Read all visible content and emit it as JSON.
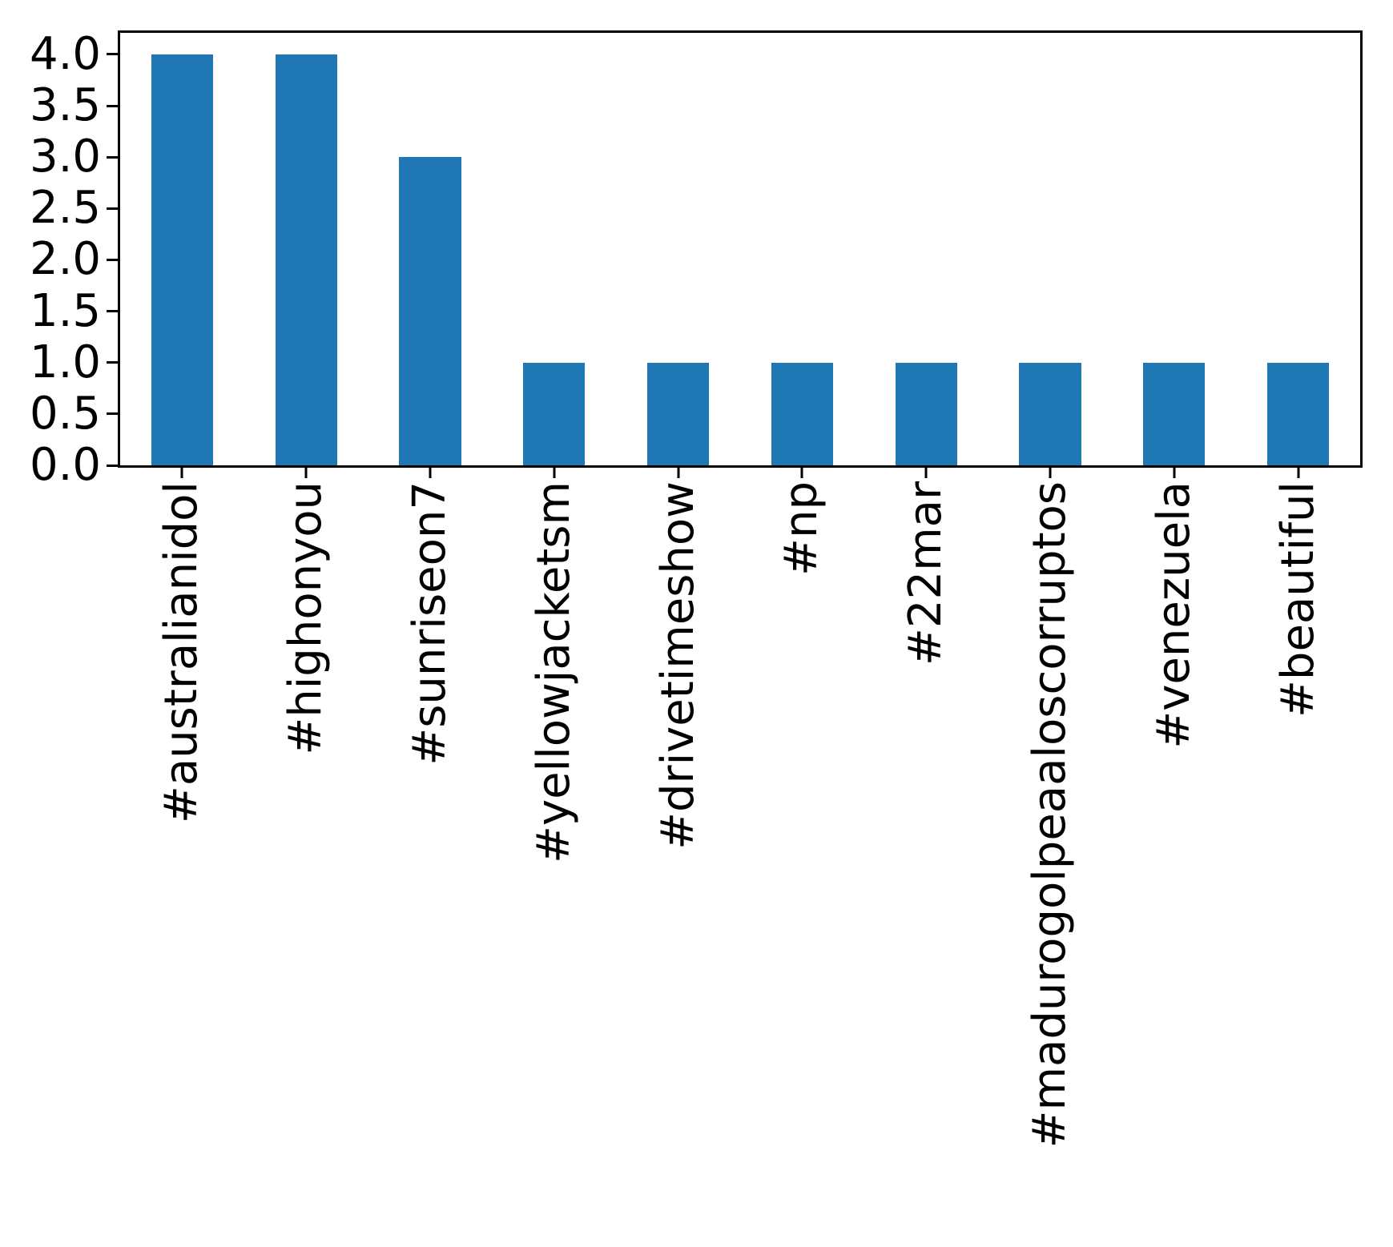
{
  "chart_data": {
    "type": "bar",
    "title": "",
    "xlabel": "",
    "ylabel": "",
    "categories": [
      "#australianidol",
      "#highonyou",
      "#sunriseon7",
      "#yellowjacketsm",
      "#drivetimeshow",
      "#np",
      "#22mar",
      "#madurogolpeaaloscorruptos",
      "#venezuela",
      "#beautiful"
    ],
    "values": [
      4,
      4,
      3,
      1,
      1,
      1,
      1,
      1,
      1,
      1
    ],
    "ylim": [
      0,
      4.21
    ],
    "yticks": [
      0.0,
      0.5,
      1.0,
      1.5,
      2.0,
      2.5,
      3.0,
      3.5,
      4.0
    ],
    "ytick_labels": [
      "0.0",
      "0.5",
      "1.0",
      "1.5",
      "2.0",
      "2.5",
      "3.0",
      "3.5",
      "4.0"
    ],
    "bar_color": "#1f77b4",
    "bar_relative_width": 0.5,
    "grid": false,
    "legend_position": "none"
  }
}
